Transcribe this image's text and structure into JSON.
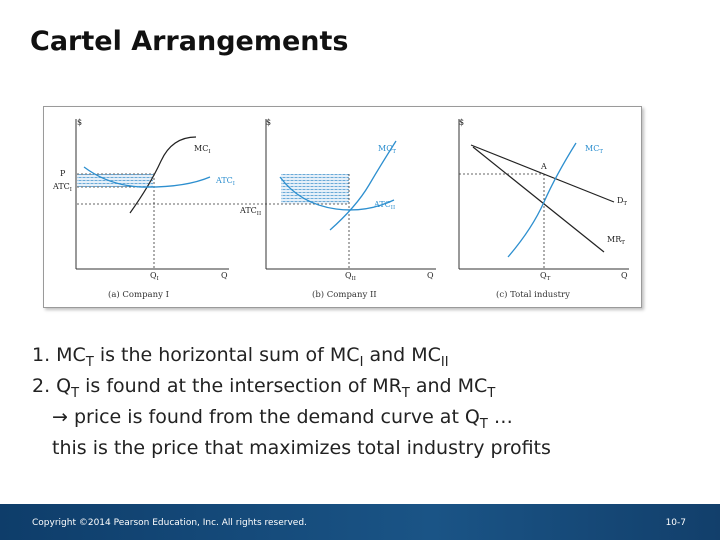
{
  "slide": {
    "title": "Cartel Arrangements"
  },
  "figure": {
    "panel_a": {
      "y_axis": "$",
      "x_axis": "Q",
      "mc": {
        "base": "MC",
        "sub": "I"
      },
      "atc": {
        "base": "ATC",
        "sub": "I"
      },
      "p_label": "P",
      "atc_level": {
        "base": "ATC",
        "sub": "I"
      },
      "q_label": {
        "base": "Q",
        "sub": "I"
      },
      "caption": "(a) Company I"
    },
    "panel_b": {
      "y_axis": "$",
      "x_axis": "Q",
      "mc": {
        "base": "MC",
        "sub": "T"
      },
      "atc": {
        "base": "ATC",
        "sub": "II"
      },
      "atc_level": {
        "base": "ATC",
        "sub": "II"
      },
      "q_label": {
        "base": "Q",
        "sub": "II"
      },
      "caption": "(b) Company II"
    },
    "panel_c": {
      "y_axis": "$",
      "x_axis": "Q",
      "mc": {
        "base": "MC",
        "sub": "T"
      },
      "demand": {
        "base": "D",
        "sub": "T"
      },
      "mr": {
        "base": "MR",
        "sub": "T"
      },
      "point": "A",
      "q_label": {
        "base": "Q",
        "sub": "T"
      },
      "caption": "(c) Total industry"
    }
  },
  "notes": {
    "line1": {
      "prefix": "1. MC",
      "sub1": "T",
      "mid1": " is the horizontal sum of MC",
      "sub2": "I",
      "mid2": " and MC",
      "sub3": "II"
    },
    "line2": {
      "prefix": "2. Q",
      "sub1": "T",
      "mid1": " is found at the intersection of MR",
      "sub2": "T",
      "mid2": " and MC",
      "sub3": "T"
    },
    "line3": {
      "arrow": "→",
      "text": " price is found from the demand curve at Q",
      "sub": "T",
      "suffix": " …"
    },
    "line4": {
      "text": "this is the price that maximizes total industry profits"
    }
  },
  "footer": {
    "copyright": "Copyright ©2014 Pearson Education, Inc. All rights reserved.",
    "page": "10-7"
  },
  "colors": {
    "curve_blue": "#2d8fcf",
    "hatch_blue": "#6aaad8",
    "footer_bg": "#1a5486"
  }
}
